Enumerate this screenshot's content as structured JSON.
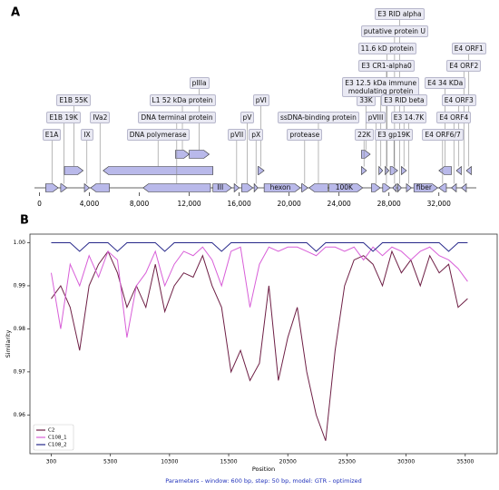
{
  "chart_data": [
    {
      "type": "genome-map",
      "panel": "A",
      "color": "#b9b9ea",
      "xlim": [
        -400,
        35000
      ],
      "xticks": [
        0,
        {
          "value": 4000,
          "label": "4,000"
        },
        {
          "value": 8000,
          "label": "8,000"
        },
        {
          "value": 12000,
          "label": "12,000"
        },
        {
          "value": 16000,
          "label": "16,000"
        },
        {
          "value": 20000,
          "label": "20,000"
        },
        {
          "value": 24000,
          "label": "24,000"
        },
        {
          "value": 28000,
          "label": "28,000"
        },
        {
          "value": 32000,
          "label": "32,000"
        }
      ],
      "features": [
        {
          "name": "E1A",
          "start": 500,
          "end": 1500,
          "strand": "forward"
        },
        {
          "name": "E1B 19K",
          "start": 1700,
          "end": 2200,
          "strand": "forward"
        },
        {
          "name": "E1B 55K",
          "start": 2000,
          "end": 3500,
          "strand": "forward"
        },
        {
          "name": "IX",
          "start": 3600,
          "end": 4000,
          "strand": "forward"
        },
        {
          "name": "IVa2",
          "start": 4100,
          "end": 5600,
          "strand": "reverse"
        },
        {
          "name": "DNA polymerase",
          "start": 5100,
          "end": 13900,
          "strand": "reverse"
        },
        {
          "name": "DNA terminal protein",
          "start": 8300,
          "end": 13700,
          "strand": "reverse"
        },
        {
          "name": "L1 52 kDa protein",
          "start": 10900,
          "end": 12000,
          "strand": "forward"
        },
        {
          "name": "pIIIa",
          "start": 12000,
          "end": 13600,
          "strand": "forward"
        },
        {
          "name": "III",
          "start": 13900,
          "end": 15400,
          "strand": "forward"
        },
        {
          "name": "pVII",
          "start": 15600,
          "end": 16000,
          "strand": "forward"
        },
        {
          "name": "pV",
          "start": 16200,
          "end": 17100,
          "strand": "forward"
        },
        {
          "name": "pX",
          "start": 17200,
          "end": 17500,
          "strand": "forward"
        },
        {
          "name": "pVI",
          "start": 17500,
          "end": 18000,
          "strand": "forward"
        },
        {
          "name": "hexon",
          "start": 18000,
          "end": 20900,
          "strand": "forward"
        },
        {
          "name": "protease",
          "start": 21000,
          "end": 21500,
          "strand": "forward"
        },
        {
          "name": "ssDNA-binding protein",
          "start": 21600,
          "end": 23100,
          "strand": "reverse"
        },
        {
          "name": "100K",
          "start": 23200,
          "end": 25900,
          "strand": "forward"
        },
        {
          "name": "22K",
          "start": 25800,
          "end": 26200,
          "strand": "forward"
        },
        {
          "name": "33K",
          "start": 25800,
          "end": 26500,
          "strand": "forward"
        },
        {
          "name": "pVIII",
          "start": 26600,
          "end": 27300,
          "strand": "forward"
        },
        {
          "name": "E3 12.5 kDa immune\nmodulating protein",
          "start": 27200,
          "end": 27500,
          "strand": "forward"
        },
        {
          "name": "E3 CR1-alpha0",
          "start": 27500,
          "end": 28100,
          "strand": "forward"
        },
        {
          "name": "11.6 kD protein",
          "start": 27700,
          "end": 28000,
          "strand": "forward"
        },
        {
          "name": "E3 gp19K",
          "start": 28100,
          "end": 28700,
          "strand": "forward"
        },
        {
          "name": "putative protein U",
          "start": 28300,
          "end": 28600,
          "strand": "reverse"
        },
        {
          "name": "E3 RID alpha",
          "start": 28700,
          "end": 29000,
          "strand": "forward"
        },
        {
          "name": "E3 RID beta",
          "start": 29000,
          "end": 29400,
          "strand": "forward"
        },
        {
          "name": "E3 14.7K",
          "start": 29400,
          "end": 29800,
          "strand": "forward"
        },
        {
          "name": "fiber",
          "start": 30000,
          "end": 31900,
          "strand": "forward"
        },
        {
          "name": "E4 ORF6/7",
          "start": 32000,
          "end": 32600,
          "strand": "reverse"
        },
        {
          "name": "E4 34 KDa",
          "start": 32000,
          "end": 33000,
          "strand": "reverse"
        },
        {
          "name": "E4 ORF4",
          "start": 33000,
          "end": 33400,
          "strand": "reverse"
        },
        {
          "name": "E4 ORF3",
          "start": 33400,
          "end": 33800,
          "strand": "reverse"
        },
        {
          "name": "E4 ORF2",
          "start": 33800,
          "end": 34200,
          "strand": "reverse"
        },
        {
          "name": "E4 ORF1",
          "start": 34200,
          "end": 34600,
          "strand": "reverse"
        }
      ]
    },
    {
      "type": "line",
      "panel": "B",
      "xlabel": "Position",
      "ylabel": "Similarity",
      "note": "Parameters - window: 600 bp, step: 50 bp, model: GTR - optimized",
      "legend": "lower left",
      "xlim": [
        -1500,
        38000
      ],
      "ylim": [
        0.951,
        1.002
      ],
      "xticks": [
        300,
        5300,
        10300,
        15300,
        20300,
        25300,
        30300,
        35300
      ],
      "yticks": [
        0.96,
        0.97,
        0.98,
        0.99,
        {
          "value": 1,
          "label": "1.00"
        }
      ],
      "x": [
        300,
        1100,
        1900,
        2700,
        3500,
        4300,
        5100,
        5900,
        6700,
        7500,
        8300,
        9100,
        9900,
        10700,
        11500,
        12300,
        13100,
        13900,
        14700,
        15500,
        16300,
        17100,
        17900,
        18700,
        19500,
        20300,
        21100,
        21900,
        22700,
        23500,
        24300,
        25100,
        25900,
        26700,
        27500,
        28300,
        29100,
        29900,
        30700,
        31500,
        32300,
        33100,
        33900,
        34700,
        35500
      ],
      "series": [
        {
          "name": "C2",
          "color": "#6e1f45",
          "values": [
            0.987,
            0.99,
            0.985,
            0.975,
            0.99,
            0.995,
            0.998,
            0.993,
            0.985,
            0.99,
            0.985,
            0.995,
            0.984,
            0.99,
            0.993,
            0.992,
            0.997,
            0.99,
            0.985,
            0.97,
            0.975,
            0.968,
            0.972,
            0.99,
            0.968,
            0.978,
            0.985,
            0.97,
            0.96,
            0.954,
            0.975,
            0.99,
            0.996,
            0.997,
            0.995,
            0.99,
            0.998,
            0.993,
            0.996,
            0.99,
            0.997,
            0.993,
            0.995,
            0.985,
            0.987
          ]
        },
        {
          "name": "C108_1",
          "color": "#d85fd8",
          "values": [
            0.993,
            0.98,
            0.995,
            0.99,
            0.997,
            0.992,
            0.998,
            0.996,
            0.978,
            0.99,
            0.993,
            0.998,
            0.99,
            0.995,
            0.998,
            0.997,
            0.999,
            0.996,
            0.99,
            0.998,
            0.999,
            0.985,
            0.995,
            0.999,
            0.998,
            0.999,
            0.999,
            0.998,
            0.997,
            0.999,
            0.999,
            0.998,
            0.999,
            0.996,
            0.999,
            0.997,
            0.999,
            0.998,
            0.996,
            0.998,
            0.999,
            0.997,
            0.996,
            0.994,
            0.991
          ]
        },
        {
          "name": "C108_2",
          "color": "#27288a",
          "values": [
            1,
            1,
            1,
            0.998,
            1,
            1,
            1,
            0.998,
            1,
            1,
            1,
            1,
            0.998,
            1,
            1,
            1,
            1,
            1,
            0.998,
            1,
            1,
            1,
            1,
            1,
            1,
            1,
            1,
            1,
            0.998,
            1,
            1,
            1,
            1,
            1,
            0.998,
            1,
            1,
            1,
            1,
            1,
            1,
            1,
            0.998,
            1,
            1
          ]
        }
      ]
    }
  ]
}
